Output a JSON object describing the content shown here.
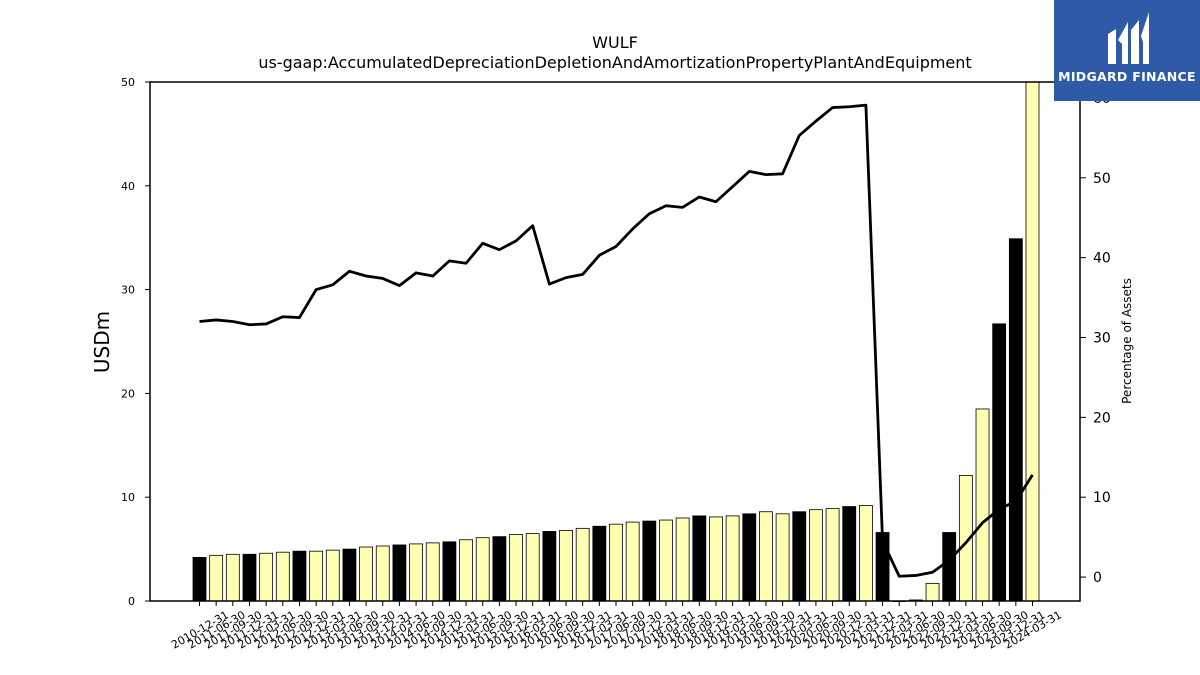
{
  "chart_data": {
    "type": "bar",
    "title": "WULF",
    "subtitle": "us-gaap:AccumulatedDepreciationDepletionAndAmortizationPropertyPlantAndEquipment",
    "ylabel": "USDm",
    "y2label": "Percentage of Assets",
    "ylim": [
      0,
      50
    ],
    "y2lim": [
      -3,
      62
    ],
    "yticks": [
      "0",
      "10",
      "20",
      "30",
      "40",
      "50"
    ],
    "y2ticks": [
      "0",
      "10",
      "20",
      "30",
      "40",
      "50",
      "60"
    ],
    "grid": false,
    "categories": [
      "2010-12-31",
      "2011-06-30",
      "2011-09-30",
      "2011-12-31",
      "2012-03-31",
      "2012-06-30",
      "2012-09-30",
      "2012-12-31",
      "2013-03-31",
      "2013-06-30",
      "2013-09-30",
      "2013-12-31",
      "2014-03-31",
      "2014-06-30",
      "2014-09-30",
      "2014-12-31",
      "2015-03-31",
      "2015-06-30",
      "2015-09-30",
      "2015-12-31",
      "2016-03-31",
      "2016-06-30",
      "2016-09-30",
      "2016-12-31",
      "2017-03-31",
      "2017-06-30",
      "2017-09-30",
      "2017-12-31",
      "2018-03-31",
      "2018-06-30",
      "2018-09-30",
      "2018-12-31",
      "2019-03-31",
      "2019-06-30",
      "2019-09-30",
      "2019-12-31",
      "2020-03-31",
      "2020-06-30",
      "2020-09-30",
      "2020-12-31",
      "2021-03-31",
      "2021-12-31",
      "2022-03-31",
      "2022-06-30",
      "2022-09-30",
      "2022-12-31",
      "2023-03-31",
      "2023-06-30",
      "2023-09-30",
      "2023-12-31",
      "2024-03-31"
    ],
    "series": [
      {
        "kind": "bar",
        "values": [
          4.2,
          4.4,
          4.5,
          4.5,
          4.6,
          4.7,
          4.8,
          4.8,
          4.9,
          5.0,
          5.2,
          5.3,
          5.4,
          5.5,
          5.6,
          5.7,
          5.9,
          6.1,
          6.2,
          6.4,
          6.5,
          6.7,
          6.8,
          7.0,
          7.2,
          7.4,
          7.6,
          7.7,
          7.8,
          8.0,
          8.2,
          8.1,
          8.2,
          8.4,
          8.6,
          8.4,
          8.6,
          8.8,
          8.9,
          9.1,
          9.2,
          6.6,
          0.0,
          0.1,
          1.7,
          6.6,
          12.1,
          18.5,
          26.7,
          34.9,
          50.0
        ],
        "highlight": [
          1,
          0,
          0,
          1,
          0,
          0,
          1,
          0,
          0,
          1,
          0,
          0,
          1,
          0,
          0,
          1,
          0,
          0,
          1,
          0,
          0,
          1,
          0,
          0,
          1,
          0,
          0,
          1,
          0,
          0,
          1,
          0,
          0,
          1,
          0,
          0,
          1,
          0,
          0,
          1,
          0,
          1,
          0,
          1,
          0,
          1,
          0,
          0,
          1,
          1,
          0
        ]
      },
      {
        "kind": "line",
        "axis": "right",
        "values": [
          32.0,
          32.2,
          32.0,
          31.6,
          31.7,
          32.6,
          32.5,
          36.0,
          36.6,
          38.3,
          37.7,
          37.4,
          36.5,
          38.1,
          37.7,
          39.6,
          39.3,
          41.8,
          41.0,
          42.1,
          44.0,
          36.7,
          37.5,
          37.9,
          40.3,
          41.4,
          43.6,
          45.5,
          46.5,
          46.3,
          47.6,
          47.0,
          48.9,
          50.8,
          50.4,
          50.5,
          55.3,
          57.1,
          58.8,
          58.9,
          59.1,
          4.5,
          0.1,
          0.2,
          0.6,
          2.1,
          4.3,
          6.8,
          8.5,
          9.5,
          12.8
        ]
      }
    ]
  },
  "logo": {
    "text": "MIDGARD FINANCE"
  },
  "colors": {
    "bar_fill": "#ffffb3",
    "bar_highlight": "#000000",
    "line": "#000000",
    "logo_bg": "#2f5aa8"
  }
}
